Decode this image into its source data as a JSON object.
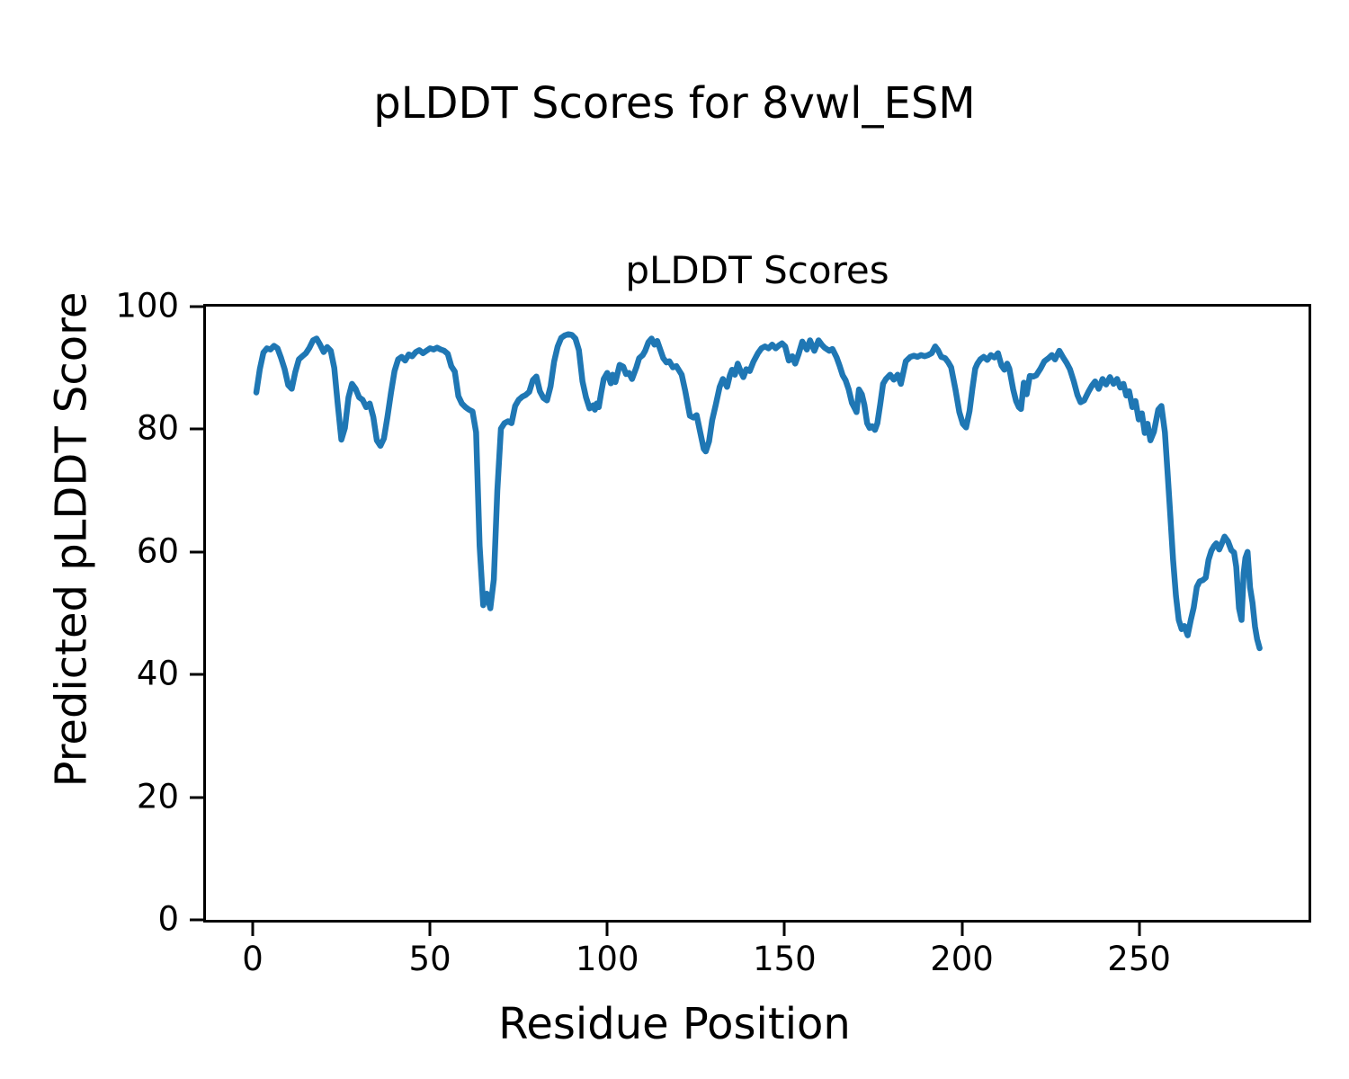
{
  "figure": {
    "suptitle": "pLDDT Scores for 8vwl_ESM",
    "background": "#ffffff",
    "text_color": "#000000"
  },
  "chart_data": {
    "type": "line",
    "title": "pLDDT Scores",
    "xlabel": "Residue Position",
    "ylabel": "Predicted pLDDT Score",
    "x_ticks": [
      0,
      50,
      100,
      150,
      200,
      250
    ],
    "y_ticks": [
      0,
      20,
      40,
      60,
      80,
      100
    ],
    "xlim": [
      -13.2,
      297.8
    ],
    "ylim": [
      0,
      100
    ],
    "grid": false,
    "legend_position": "none",
    "line_color": "#1f77b4",
    "series": [
      {
        "name": "pLDDT",
        "color": "#1f77b4",
        "points": [
          [
            1,
            86.0
          ],
          [
            2,
            89.8
          ],
          [
            3,
            92.5
          ],
          [
            4,
            93.2
          ],
          [
            5,
            93.0
          ],
          [
            6,
            93.6
          ],
          [
            7,
            93.2
          ],
          [
            8,
            91.6
          ],
          [
            9,
            89.8
          ],
          [
            10,
            87.2
          ],
          [
            11,
            86.6
          ],
          [
            12,
            89.3
          ],
          [
            13,
            91.4
          ],
          [
            14,
            91.9
          ],
          [
            15,
            92.4
          ],
          [
            16,
            93.3
          ],
          [
            17,
            94.5
          ],
          [
            18,
            94.8
          ],
          [
            19,
            93.8
          ],
          [
            20,
            92.6
          ],
          [
            21,
            93.4
          ],
          [
            22,
            92.8
          ],
          [
            23,
            90.0
          ],
          [
            24,
            84.0
          ],
          [
            25,
            78.3
          ],
          [
            26,
            80.2
          ],
          [
            27,
            85.2
          ],
          [
            28,
            87.4
          ],
          [
            29,
            86.6
          ],
          [
            30,
            85.2
          ],
          [
            31,
            84.8
          ],
          [
            32,
            83.6
          ],
          [
            33,
            84.2
          ],
          [
            34,
            82.0
          ],
          [
            35,
            78.2
          ],
          [
            36,
            77.3
          ],
          [
            37,
            78.5
          ],
          [
            38,
            82.0
          ],
          [
            39,
            86.0
          ],
          [
            40,
            89.5
          ],
          [
            41,
            91.4
          ],
          [
            42,
            91.8
          ],
          [
            43,
            91.2
          ],
          [
            44,
            92.2
          ],
          [
            45,
            91.9
          ],
          [
            46,
            92.6
          ],
          [
            47,
            92.9
          ],
          [
            48,
            92.4
          ],
          [
            49,
            92.8
          ],
          [
            50,
            93.2
          ],
          [
            51,
            93.0
          ],
          [
            52,
            93.3
          ],
          [
            53,
            93.0
          ],
          [
            54,
            92.8
          ],
          [
            55,
            92.3
          ],
          [
            56,
            90.3
          ],
          [
            57,
            89.4
          ],
          [
            58,
            85.4
          ],
          [
            59,
            84.2
          ],
          [
            60,
            83.6
          ],
          [
            61,
            83.2
          ],
          [
            62,
            82.9
          ],
          [
            63,
            79.5
          ],
          [
            64,
            61.0
          ],
          [
            65,
            51.3
          ],
          [
            66,
            53.2
          ],
          [
            67,
            50.8
          ],
          [
            68,
            55.5
          ],
          [
            69,
            70.0
          ],
          [
            70,
            80.1
          ],
          [
            71,
            81.0
          ],
          [
            72,
            81.3
          ],
          [
            73,
            81.0
          ],
          [
            74,
            83.8
          ],
          [
            75,
            84.8
          ],
          [
            76,
            85.3
          ],
          [
            77,
            85.6
          ],
          [
            78,
            86.1
          ],
          [
            79,
            88.0
          ],
          [
            80,
            88.6
          ],
          [
            81,
            86.2
          ],
          [
            82,
            85.1
          ],
          [
            83,
            84.7
          ],
          [
            84,
            87.0
          ],
          [
            85,
            91.0
          ],
          [
            86,
            93.5
          ],
          [
            87,
            94.9
          ],
          [
            88,
            95.3
          ],
          [
            89,
            95.5
          ],
          [
            90,
            95.4
          ],
          [
            91,
            94.8
          ],
          [
            92,
            92.9
          ],
          [
            93,
            87.8
          ],
          [
            94,
            85.2
          ],
          [
            95,
            83.4
          ],
          [
            96,
            83.9
          ],
          [
            96.5,
            83.2
          ],
          [
            97,
            84.2
          ],
          [
            97.6,
            83.6
          ],
          [
            98.3,
            86.0
          ],
          [
            99,
            88.2
          ],
          [
            100,
            89.2
          ],
          [
            101,
            87.5
          ],
          [
            101.5,
            88.9
          ],
          [
            102.3,
            87.7
          ],
          [
            103.5,
            90.5
          ],
          [
            104.5,
            90.2
          ],
          [
            105.3,
            89.0
          ],
          [
            106.1,
            89.2
          ],
          [
            107,
            88.2
          ],
          [
            108.2,
            90.1
          ],
          [
            109,
            91.6
          ],
          [
            110,
            92.1
          ],
          [
            110.7,
            92.8
          ],
          [
            111.6,
            94.2
          ],
          [
            112.5,
            94.8
          ],
          [
            113.3,
            93.8
          ],
          [
            114.1,
            94.4
          ],
          [
            115,
            92.9
          ],
          [
            115.8,
            91.6
          ],
          [
            116.7,
            90.9
          ],
          [
            117.5,
            91.1
          ],
          [
            118.5,
            90.1
          ],
          [
            119.5,
            90.3
          ],
          [
            121,
            88.9
          ],
          [
            122,
            86.2
          ],
          [
            123.3,
            82.2
          ],
          [
            124.3,
            81.9
          ],
          [
            125.2,
            82.3
          ],
          [
            126.3,
            79.3
          ],
          [
            127.2,
            76.8
          ],
          [
            127.8,
            76.4
          ],
          [
            128.7,
            78.0
          ],
          [
            129.6,
            81.5
          ],
          [
            130.6,
            84.0
          ],
          [
            131.7,
            86.9
          ],
          [
            132.6,
            88.2
          ],
          [
            133.8,
            86.9
          ],
          [
            134.6,
            88.8
          ],
          [
            135.2,
            89.7
          ],
          [
            136,
            88.9
          ],
          [
            136.8,
            90.7
          ],
          [
            137.8,
            89.2
          ],
          [
            138.4,
            88.5
          ],
          [
            139.2,
            89.8
          ],
          [
            140.2,
            89.5
          ],
          [
            141.2,
            91.0
          ],
          [
            142.5,
            92.4
          ],
          [
            143.5,
            93.2
          ],
          [
            144.5,
            93.5
          ],
          [
            145.5,
            93.2
          ],
          [
            146.5,
            93.8
          ],
          [
            147.5,
            93.2
          ],
          [
            148.5,
            93.7
          ],
          [
            149.3,
            94.0
          ],
          [
            150.2,
            93.5
          ],
          [
            151.2,
            91.2
          ],
          [
            152.2,
            91.9
          ],
          [
            153,
            90.7
          ],
          [
            154,
            92.3
          ],
          [
            155,
            94.3
          ],
          [
            156.3,
            93.0
          ],
          [
            157.2,
            94.5
          ],
          [
            158.4,
            92.8
          ],
          [
            159.6,
            94.5
          ],
          [
            160.5,
            93.8
          ],
          [
            161.3,
            93.3
          ],
          [
            162.6,
            92.8
          ],
          [
            163.5,
            93.1
          ],
          [
            164.7,
            91.7
          ],
          [
            165.5,
            90.4
          ],
          [
            166.4,
            88.8
          ],
          [
            167.2,
            88.0
          ],
          [
            168.1,
            86.5
          ],
          [
            169,
            84.3
          ],
          [
            169.8,
            83.4
          ],
          [
            170.3,
            82.8
          ],
          [
            171,
            86.5
          ],
          [
            171.8,
            85.7
          ],
          [
            172.5,
            84.0
          ],
          [
            173.3,
            81.0
          ],
          [
            174,
            80.2
          ],
          [
            174.7,
            80.5
          ],
          [
            175.5,
            79.9
          ],
          [
            176.2,
            81.0
          ],
          [
            177,
            84.1
          ],
          [
            177.8,
            87.4
          ],
          [
            178.6,
            88.2
          ],
          [
            179.8,
            88.9
          ],
          [
            180.8,
            88.1
          ],
          [
            181.9,
            88.9
          ],
          [
            182.8,
            87.4
          ],
          [
            184.2,
            91.1
          ],
          [
            185.5,
            91.8
          ],
          [
            186.5,
            92.0
          ],
          [
            187.5,
            91.8
          ],
          [
            188.5,
            92.1
          ],
          [
            189.5,
            91.9
          ],
          [
            190.5,
            92.1
          ],
          [
            191.5,
            92.4
          ],
          [
            192.5,
            93.5
          ],
          [
            193.3,
            92.9
          ],
          [
            194.2,
            91.8
          ],
          [
            195.3,
            91.6
          ],
          [
            196.2,
            90.9
          ],
          [
            197,
            90.1
          ],
          [
            198.2,
            86.5
          ],
          [
            199.3,
            82.8
          ],
          [
            200.3,
            80.9
          ],
          [
            201.2,
            80.3
          ],
          [
            202.2,
            83.0
          ],
          [
            203,
            86.7
          ],
          [
            203.8,
            89.9
          ],
          [
            204.4,
            90.7
          ],
          [
            205.2,
            91.4
          ],
          [
            206.2,
            91.8
          ],
          [
            207.2,
            91.3
          ],
          [
            208.2,
            92.1
          ],
          [
            209.2,
            91.7
          ],
          [
            210.2,
            92.4
          ],
          [
            211.2,
            90.4
          ],
          [
            212,
            89.7
          ],
          [
            212.8,
            90.7
          ],
          [
            213.4,
            89.9
          ],
          [
            214.5,
            86.5
          ],
          [
            215.3,
            84.6
          ],
          [
            216.1,
            83.6
          ],
          [
            216.7,
            83.3
          ],
          [
            217.5,
            87.6
          ],
          [
            218.3,
            85.7
          ],
          [
            219.2,
            88.7
          ],
          [
            220.2,
            88.6
          ],
          [
            221,
            88.8
          ],
          [
            222.2,
            89.9
          ],
          [
            223.3,
            91.1
          ],
          [
            224.5,
            91.6
          ],
          [
            225.4,
            92.1
          ],
          [
            226.3,
            91.4
          ],
          [
            227.5,
            92.8
          ],
          [
            228.6,
            91.7
          ],
          [
            229.6,
            90.8
          ],
          [
            230.5,
            89.8
          ],
          [
            231.6,
            87.8
          ],
          [
            232.6,
            85.6
          ],
          [
            233.5,
            84.4
          ],
          [
            234.5,
            84.7
          ],
          [
            235.8,
            86.2
          ],
          [
            236.7,
            87.1
          ],
          [
            237.6,
            87.8
          ],
          [
            238.6,
            86.6
          ],
          [
            239.7,
            88.2
          ],
          [
            240.7,
            87.3
          ],
          [
            241.8,
            88.5
          ],
          [
            242.8,
            87.4
          ],
          [
            243.8,
            88.2
          ],
          [
            244.7,
            86.8
          ],
          [
            245.6,
            87.4
          ],
          [
            246.4,
            85.5
          ],
          [
            247.2,
            86.2
          ],
          [
            248.1,
            83.6
          ],
          [
            249,
            84.6
          ],
          [
            249.9,
            81.6
          ],
          [
            250.8,
            82.6
          ],
          [
            251.6,
            79.4
          ],
          [
            252.4,
            80.9
          ],
          [
            253.2,
            78.2
          ],
          [
            254.2,
            79.6
          ],
          [
            255.4,
            83.2
          ],
          [
            256.3,
            83.8
          ],
          [
            257.3,
            79.5
          ],
          [
            258,
            73.3
          ],
          [
            258.8,
            66.0
          ],
          [
            259.6,
            58.7
          ],
          [
            260.4,
            52.8
          ],
          [
            261.2,
            48.9
          ],
          [
            262,
            47.4
          ],
          [
            262.8,
            47.9
          ],
          [
            263.7,
            46.4
          ],
          [
            264.6,
            48.9
          ],
          [
            265.4,
            50.9
          ],
          [
            266.3,
            54.3
          ],
          [
            267.1,
            55.2
          ],
          [
            268,
            55.4
          ],
          [
            268.8,
            55.8
          ],
          [
            269.6,
            58.7
          ],
          [
            270.4,
            60.2
          ],
          [
            271.2,
            61.0
          ],
          [
            271.8,
            61.4
          ],
          [
            272.6,
            60.4
          ],
          [
            273.3,
            61.3
          ],
          [
            274.1,
            62.5
          ],
          [
            275.1,
            61.7
          ],
          [
            276,
            60.3
          ],
          [
            276.8,
            59.9
          ],
          [
            277.4,
            57.6
          ],
          [
            278.2,
            50.8
          ],
          [
            278.9,
            48.9
          ],
          [
            279.5,
            56.6
          ],
          [
            280,
            59.0
          ],
          [
            280.6,
            60.0
          ],
          [
            281.3,
            54.2
          ],
          [
            282,
            51.7
          ],
          [
            282.7,
            47.8
          ],
          [
            283.3,
            45.8
          ],
          [
            284,
            44.3
          ]
        ]
      }
    ]
  }
}
